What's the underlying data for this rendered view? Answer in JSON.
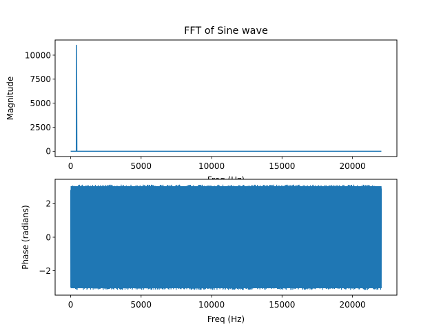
{
  "colors": {
    "series": "#1f77b4",
    "axes": "#000000",
    "background": "#ffffff"
  },
  "chart_data": [
    {
      "type": "line",
      "title": "FFT of Sine wave",
      "xlabel": "Freq (Hz)",
      "ylabel": "Magnitude",
      "xlim": [
        -1102.5,
        23152.5
      ],
      "ylim": [
        -551.25,
        11576.25
      ],
      "xticks": [
        0,
        5000,
        10000,
        15000,
        20000
      ],
      "yticks": [
        0,
        2500,
        5000,
        7500,
        10000
      ],
      "grid": false,
      "series": [
        {
          "x": [
            0,
            380,
            400,
            420,
            440,
            460,
            22050
          ],
          "y": [
            0,
            0,
            0,
            11025,
            0,
            0,
            0
          ]
        }
      ]
    },
    {
      "type": "line",
      "title": "",
      "xlabel": "Freq (Hz)",
      "ylabel": "Phase (radians)",
      "xlim": [
        -1102.5,
        23152.5
      ],
      "ylim": [
        -3.46,
        3.46
      ],
      "xticks": [
        0,
        5000,
        10000,
        15000,
        20000
      ],
      "yticks": [
        -2,
        0,
        2
      ],
      "grid": false,
      "series": [
        {
          "x_range": [
            0,
            22050
          ],
          "y_range": [
            -3.14159,
            3.14159
          ],
          "description_visible": "dense noise-like phase values spanning -pi to pi across all frequencies"
        }
      ]
    }
  ]
}
